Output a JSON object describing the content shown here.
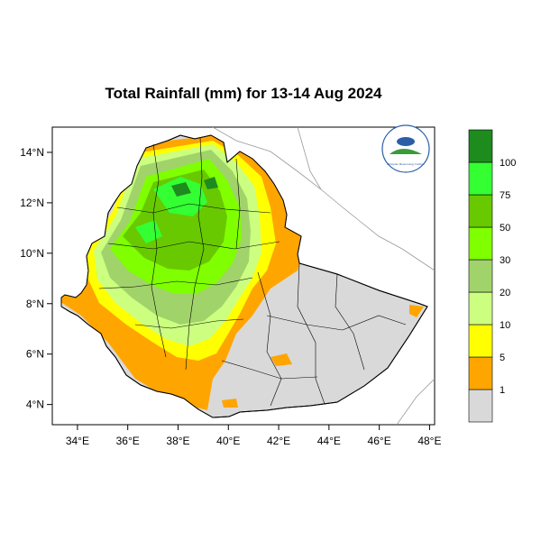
{
  "title": "Total Rainfall (mm) for 13-14 Aug 2024",
  "map": {
    "lon_range": [
      33,
      48.2
    ],
    "lat_range": [
      3.2,
      15
    ],
    "lon_ticks": [
      {
        "value": 34,
        "label": "34°E"
      },
      {
        "value": 36,
        "label": "36°E"
      },
      {
        "value": 38,
        "label": "38°E"
      },
      {
        "value": 40,
        "label": "40°E"
      },
      {
        "value": 42,
        "label": "42°E"
      },
      {
        "value": 44,
        "label": "44°E"
      },
      {
        "value": 46,
        "label": "46°E"
      },
      {
        "value": 48,
        "label": "48°E"
      }
    ],
    "lat_ticks": [
      {
        "value": 14,
        "label": "14°N"
      },
      {
        "value": 12,
        "label": "12°N"
      },
      {
        "value": 10,
        "label": "10°N"
      },
      {
        "value": 8,
        "label": "8°N"
      },
      {
        "value": 6,
        "label": "6°N"
      },
      {
        "value": 4,
        "label": "4°N"
      }
    ]
  },
  "colorbar": {
    "levels": [
      {
        "label": "",
        "color": "#d9d9d9"
      },
      {
        "label": "1",
        "color": "#ffa500"
      },
      {
        "label": "5",
        "color": "#ffff00"
      },
      {
        "label": "10",
        "color": "#ccff80"
      },
      {
        "label": "20",
        "color": "#a1d36b"
      },
      {
        "label": "30",
        "color": "#7fff00"
      },
      {
        "label": "50",
        "color": "#68c900"
      },
      {
        "label": "75",
        "color": "#33ff33"
      },
      {
        "label": "100",
        "color": "#1e8b1e"
      }
    ]
  },
  "logo": {
    "text": "Ethiopian Meteorology Institute"
  }
}
